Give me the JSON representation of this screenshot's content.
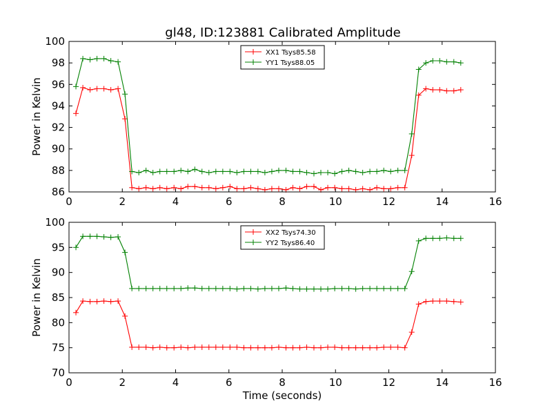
{
  "figure": {
    "title": "gl48, ID:123881 Calibrated Amplitude"
  },
  "chart_data": [
    {
      "type": "line",
      "ylabel": "Power in Kelvin",
      "xlabel": "",
      "xlim": [
        0,
        16
      ],
      "ylim": [
        86,
        100
      ],
      "xticks": [
        0,
        2,
        4,
        6,
        8,
        10,
        12,
        14,
        16
      ],
      "yticks": [
        86,
        88,
        90,
        92,
        94,
        96,
        98,
        100
      ],
      "grid": false,
      "legend": "top-center",
      "series": [
        {
          "name": "XX1 Tsys85.58",
          "color": "#ff0000",
          "x": [
            0.26,
            0.52,
            0.79,
            1.05,
            1.31,
            1.57,
            1.84,
            2.1,
            2.36,
            2.62,
            2.89,
            3.15,
            3.41,
            3.67,
            3.94,
            4.2,
            4.46,
            4.72,
            4.99,
            5.25,
            5.51,
            5.77,
            6.04,
            6.3,
            6.56,
            6.82,
            7.09,
            7.35,
            7.61,
            7.87,
            8.14,
            8.4,
            8.66,
            8.92,
            9.19,
            9.45,
            9.71,
            9.97,
            10.24,
            10.5,
            10.76,
            11.02,
            11.29,
            11.55,
            11.81,
            12.07,
            12.34,
            12.6,
            12.86,
            13.12,
            13.39,
            13.65,
            13.91,
            14.17,
            14.44,
            14.7
          ],
          "y": [
            93.3,
            95.7,
            95.5,
            95.6,
            95.6,
            95.5,
            95.6,
            92.8,
            86.4,
            86.3,
            86.4,
            86.3,
            86.4,
            86.3,
            86.4,
            86.3,
            86.5,
            86.5,
            86.4,
            86.4,
            86.3,
            86.4,
            86.5,
            86.3,
            86.3,
            86.4,
            86.3,
            86.2,
            86.3,
            86.3,
            86.2,
            86.4,
            86.3,
            86.5,
            86.5,
            86.2,
            86.4,
            86.4,
            86.3,
            86.3,
            86.2,
            86.3,
            86.2,
            86.4,
            86.3,
            86.3,
            86.4,
            86.4,
            89.4,
            95.0,
            95.6,
            95.5,
            95.5,
            95.4,
            95.4,
            95.5
          ]
        },
        {
          "name": "YY1 Tsys88.05",
          "color": "#008000",
          "x": [
            0.26,
            0.52,
            0.79,
            1.05,
            1.31,
            1.57,
            1.84,
            2.1,
            2.36,
            2.62,
            2.89,
            3.15,
            3.41,
            3.67,
            3.94,
            4.2,
            4.46,
            4.72,
            4.99,
            5.25,
            5.51,
            5.77,
            6.04,
            6.3,
            6.56,
            6.82,
            7.09,
            7.35,
            7.61,
            7.87,
            8.14,
            8.4,
            8.66,
            8.92,
            9.19,
            9.45,
            9.71,
            9.97,
            10.24,
            10.5,
            10.76,
            11.02,
            11.29,
            11.55,
            11.81,
            12.07,
            12.34,
            12.6,
            12.86,
            13.12,
            13.39,
            13.65,
            13.91,
            14.17,
            14.44,
            14.7
          ],
          "y": [
            95.8,
            98.4,
            98.3,
            98.4,
            98.4,
            98.2,
            98.1,
            95.1,
            87.9,
            87.8,
            88.0,
            87.8,
            87.9,
            87.9,
            87.9,
            88.0,
            87.9,
            88.1,
            87.9,
            87.8,
            87.9,
            87.9,
            87.9,
            87.8,
            87.9,
            87.9,
            87.9,
            87.8,
            87.9,
            88.0,
            88.0,
            87.9,
            87.9,
            87.8,
            87.7,
            87.8,
            87.8,
            87.7,
            87.9,
            88.0,
            87.9,
            87.8,
            87.9,
            87.9,
            88.0,
            87.9,
            88.0,
            88.0,
            91.4,
            97.4,
            98.0,
            98.2,
            98.2,
            98.1,
            98.1,
            98.0
          ]
        }
      ]
    },
    {
      "type": "line",
      "ylabel": "Power in Kelvin",
      "xlabel": "Time (seconds)",
      "xlim": [
        0,
        16
      ],
      "ylim": [
        70,
        100
      ],
      "xticks": [
        0,
        2,
        4,
        6,
        8,
        10,
        12,
        14,
        16
      ],
      "yticks": [
        70,
        75,
        80,
        85,
        90,
        95,
        100
      ],
      "grid": false,
      "legend": "top-center",
      "series": [
        {
          "name": "XX2 Tsys74.30",
          "color": "#ff0000",
          "x": [
            0.26,
            0.52,
            0.79,
            1.05,
            1.31,
            1.57,
            1.84,
            2.1,
            2.36,
            2.62,
            2.89,
            3.15,
            3.41,
            3.67,
            3.94,
            4.2,
            4.46,
            4.72,
            4.99,
            5.25,
            5.51,
            5.77,
            6.04,
            6.3,
            6.56,
            6.82,
            7.09,
            7.35,
            7.61,
            7.87,
            8.14,
            8.4,
            8.66,
            8.92,
            9.19,
            9.45,
            9.71,
            9.97,
            10.24,
            10.5,
            10.76,
            11.02,
            11.29,
            11.55,
            11.81,
            12.07,
            12.34,
            12.6,
            12.86,
            13.12,
            13.39,
            13.65,
            13.91,
            14.17,
            14.44,
            14.7
          ],
          "y": [
            82.0,
            84.3,
            84.2,
            84.2,
            84.3,
            84.2,
            84.3,
            81.3,
            75.1,
            75.1,
            75.1,
            75.0,
            75.1,
            75.0,
            75.0,
            75.1,
            75.0,
            75.1,
            75.1,
            75.1,
            75.1,
            75.1,
            75.1,
            75.1,
            75.0,
            75.0,
            75.0,
            75.0,
            75.0,
            75.1,
            75.0,
            75.0,
            75.0,
            75.1,
            75.0,
            75.0,
            75.1,
            75.1,
            75.0,
            75.0,
            75.0,
            75.0,
            75.0,
            75.0,
            75.1,
            75.1,
            75.1,
            75.0,
            78.1,
            83.7,
            84.2,
            84.3,
            84.3,
            84.3,
            84.2,
            84.1
          ]
        },
        {
          "name": "YY2 Tsys86.40",
          "color": "#008000",
          "x": [
            0.26,
            0.52,
            0.79,
            1.05,
            1.31,
            1.57,
            1.84,
            2.1,
            2.36,
            2.62,
            2.89,
            3.15,
            3.41,
            3.67,
            3.94,
            4.2,
            4.46,
            4.72,
            4.99,
            5.25,
            5.51,
            5.77,
            6.04,
            6.3,
            6.56,
            6.82,
            7.09,
            7.35,
            7.61,
            7.87,
            8.14,
            8.4,
            8.66,
            8.92,
            9.19,
            9.45,
            9.71,
            9.97,
            10.24,
            10.5,
            10.76,
            11.02,
            11.29,
            11.55,
            11.81,
            12.07,
            12.34,
            12.6,
            12.86,
            13.12,
            13.39,
            13.65,
            13.91,
            14.17,
            14.44,
            14.7
          ],
          "y": [
            95.0,
            97.2,
            97.2,
            97.2,
            97.1,
            97.0,
            97.1,
            94.0,
            86.8,
            86.8,
            86.8,
            86.8,
            86.8,
            86.8,
            86.8,
            86.8,
            86.9,
            86.9,
            86.8,
            86.8,
            86.8,
            86.8,
            86.8,
            86.7,
            86.8,
            86.8,
            86.7,
            86.8,
            86.8,
            86.8,
            86.9,
            86.8,
            86.7,
            86.7,
            86.7,
            86.7,
            86.7,
            86.8,
            86.8,
            86.8,
            86.7,
            86.8,
            86.8,
            86.8,
            86.8,
            86.8,
            86.8,
            86.8,
            90.2,
            96.3,
            96.8,
            96.8,
            96.8,
            96.9,
            96.8,
            96.8
          ]
        }
      ]
    }
  ]
}
